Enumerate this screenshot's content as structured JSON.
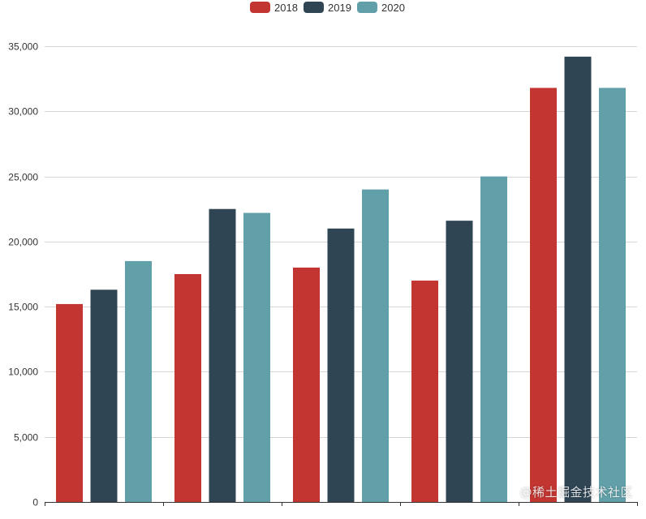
{
  "chart_data": {
    "type": "bar",
    "categories": [
      "",
      "",
      "",
      "",
      ""
    ],
    "series": [
      {
        "name": "2018",
        "color": "#c23531",
        "values": [
          15200,
          17500,
          18000,
          17000,
          31800
        ]
      },
      {
        "name": "2019",
        "color": "#2f4554",
        "values": [
          16300,
          22500,
          21000,
          21600,
          34200
        ]
      },
      {
        "name": "2020",
        "color": "#61a0a8",
        "values": [
          18500,
          22200,
          24000,
          25000,
          31800
        ]
      }
    ],
    "ylim": [
      0,
      35000
    ],
    "yticks": [
      "0",
      "5,000",
      "10,000",
      "15,000",
      "20,000",
      "25,000",
      "30,000",
      "35,000"
    ],
    "grid": true,
    "legend_position": "top-center",
    "title": "",
    "xlabel": "",
    "ylabel": ""
  },
  "watermark": "@稀土掘金技术社区"
}
